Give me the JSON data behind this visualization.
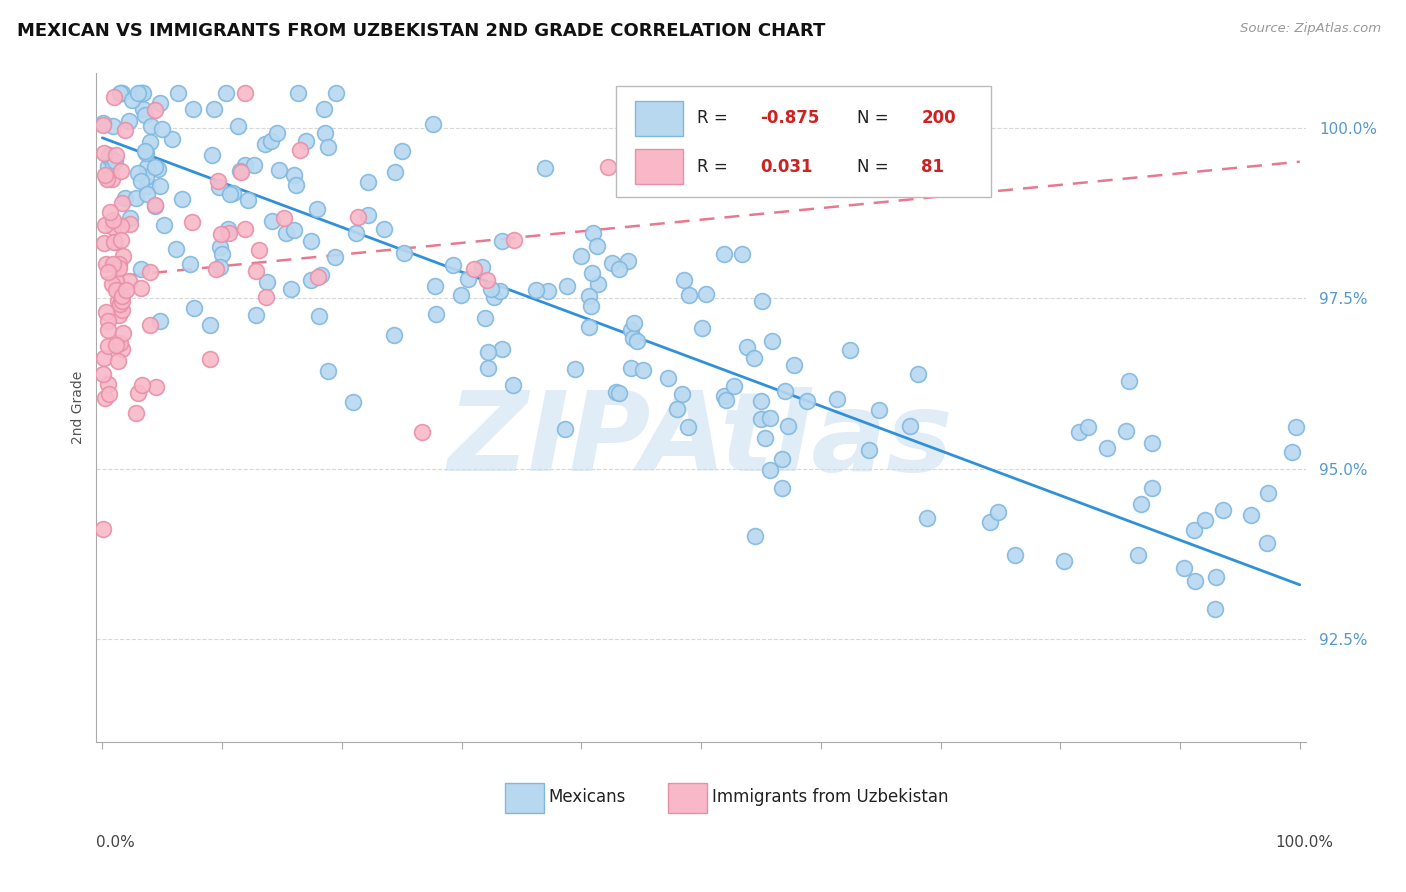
{
  "title": "MEXICAN VS IMMIGRANTS FROM UZBEKISTAN 2ND GRADE CORRELATION CHART",
  "source_text": "Source: ZipAtlas.com",
  "ylabel": "2nd Grade",
  "legend_mexicans": "Mexicans",
  "legend_uzbekistan": "Immigrants from Uzbekistan",
  "blue_R": -0.875,
  "blue_N": 200,
  "pink_R": 0.031,
  "pink_N": 81,
  "blue_color": "#b8d8f0",
  "blue_edge": "#80b8e0",
  "pink_color": "#f8b8c8",
  "pink_edge": "#e890a8",
  "blue_line_color": "#3090d8",
  "pink_line_color": "#e87890",
  "background_color": "#ffffff",
  "grid_color": "#d8d8d8",
  "title_fontsize": 13,
  "watermark_color": "#c8ddf0",
  "ymin": 91.0,
  "ymax": 100.8,
  "xmin": -0.5,
  "xmax": 100.5,
  "blue_line_x0": 0,
  "blue_line_y0": 99.85,
  "blue_line_x1": 100,
  "blue_line_y1": 93.3,
  "pink_line_x0": 0,
  "pink_line_y0": 97.8,
  "pink_line_x1": 100,
  "pink_line_y1": 99.5,
  "yticks": [
    92.5,
    95.0,
    97.5,
    100.0
  ],
  "ytick_labels": [
    "92.5%",
    "95.0%",
    "97.5%",
    "100.0%"
  ],
  "tick_color": "#5599cc"
}
